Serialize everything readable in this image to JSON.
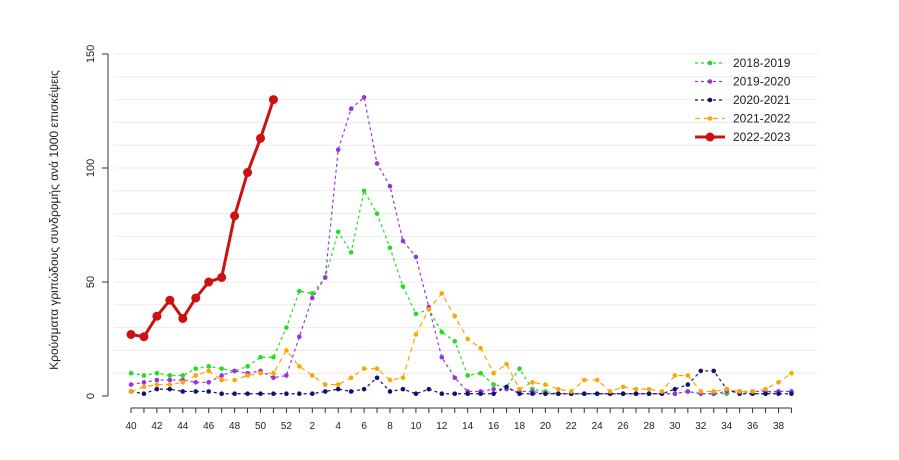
{
  "chart_data": {
    "type": "line",
    "ylabel": "Κρούσματα γριπώδους συνδρομής ανά 1000 επισκέψεις",
    "ylim": [
      0,
      150
    ],
    "yticks": [
      0,
      50,
      100,
      150
    ],
    "grid": "horizontal",
    "legend_position": "top-right",
    "x_categories": [
      "40",
      "41",
      "42",
      "43",
      "44",
      "45",
      "46",
      "47",
      "48",
      "49",
      "50",
      "51",
      "52",
      "1",
      "2",
      "3",
      "4",
      "5",
      "6",
      "7",
      "8",
      "9",
      "10",
      "11",
      "12",
      "13",
      "14",
      "15",
      "16",
      "17",
      "18",
      "19",
      "20",
      "21",
      "22",
      "23",
      "24",
      "25",
      "26",
      "27",
      "28",
      "29",
      "30",
      "31",
      "32",
      "33",
      "34",
      "35",
      "36",
      "37",
      "38",
      "39"
    ],
    "x_tick_labels": [
      "40",
      "42",
      "44",
      "46",
      "48",
      "50",
      "52",
      "2",
      "4",
      "6",
      "8",
      "10",
      "12",
      "14",
      "16",
      "18",
      "20",
      "22",
      "24",
      "26",
      "28",
      "30",
      "32",
      "34",
      "36",
      "38"
    ],
    "series": [
      {
        "name": "2018-2019",
        "color": "#22dd22",
        "style": "dashed-small",
        "values": [
          10,
          9,
          10,
          9,
          9,
          12,
          13,
          12,
          11,
          13,
          17,
          17,
          30,
          46,
          45,
          52,
          72,
          63,
          90,
          80,
          65,
          48,
          36,
          38,
          28,
          24,
          9,
          10,
          5,
          4,
          12,
          3,
          2,
          1,
          1,
          1,
          1,
          1,
          1,
          1,
          1,
          1,
          1,
          2,
          1,
          1,
          1,
          2,
          1,
          1,
          2,
          2
        ]
      },
      {
        "name": "2019-2020",
        "color": "#9933dd",
        "style": "dashed-small",
        "values": [
          5,
          6,
          7,
          7,
          7,
          6,
          6,
          9,
          11,
          10,
          11,
          8,
          9,
          26,
          43,
          52,
          108,
          126,
          131,
          102,
          92,
          68,
          61,
          39,
          17,
          8,
          2,
          2,
          3,
          3,
          2,
          2,
          1,
          1,
          1,
          1,
          1,
          1,
          1,
          1,
          1,
          1,
          1,
          2,
          1,
          1,
          2,
          2,
          2,
          2,
          2,
          2
        ]
      },
      {
        "name": "2020-2021",
        "color": "#111177",
        "style": "dashed-small",
        "values": [
          2,
          1,
          3,
          3,
          2,
          2,
          2,
          1,
          1,
          1,
          1,
          1,
          1,
          1,
          1,
          2,
          3,
          2,
          3,
          8,
          2,
          3,
          1,
          3,
          1,
          1,
          1,
          1,
          1,
          4,
          1,
          1,
          1,
          1,
          1,
          1,
          1,
          1,
          1,
          1,
          1,
          1,
          3,
          5,
          11,
          11,
          3,
          1,
          1,
          1,
          1,
          1
        ]
      },
      {
        "name": "2021-2022",
        "color": "#ffa500",
        "style": "dashed-large",
        "values": [
          2,
          4,
          5,
          5,
          6,
          9,
          11,
          7,
          7,
          9,
          10,
          10,
          20,
          13,
          9,
          5,
          5,
          8,
          12,
          12,
          7,
          8,
          27,
          38,
          45,
          35,
          25,
          21,
          10,
          14,
          3,
          6,
          5,
          3,
          2,
          7,
          7,
          2,
          4,
          3,
          3,
          2,
          9,
          9,
          2,
          2,
          3,
          2,
          2,
          3,
          6,
          10
        ]
      },
      {
        "name": "2022-2023",
        "color": "#cc1111",
        "style": "solid-thick",
        "values": [
          27,
          26,
          35,
          42,
          34,
          43,
          50,
          52,
          79,
          98,
          113,
          130
        ]
      }
    ]
  }
}
